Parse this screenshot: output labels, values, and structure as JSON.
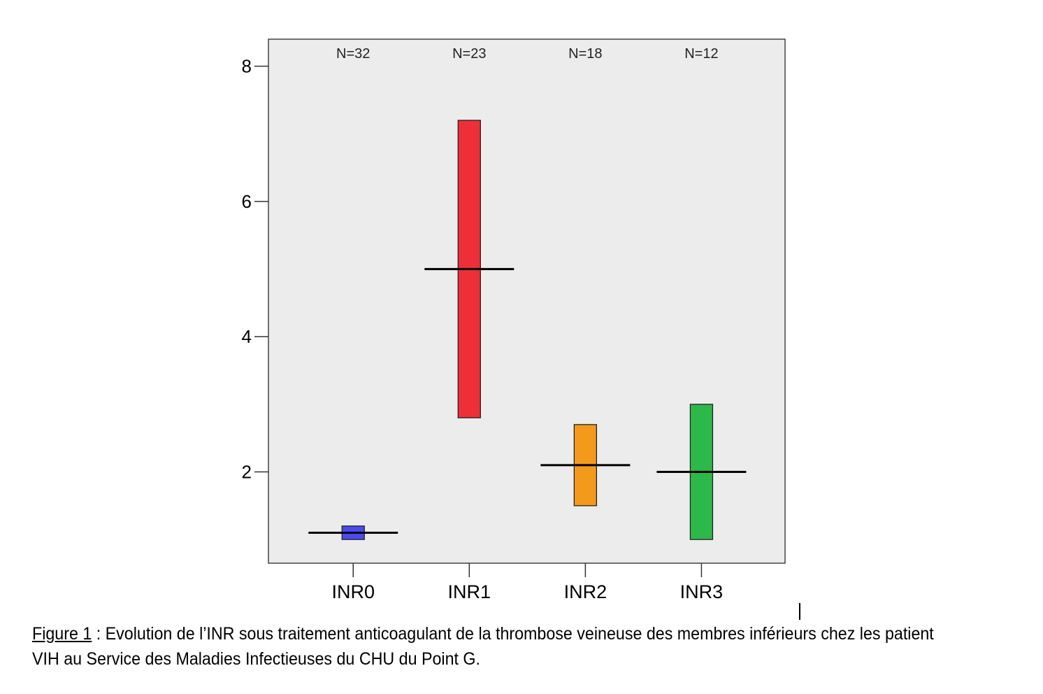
{
  "chart_data": {
    "type": "box",
    "categories": [
      "INR0",
      "INR1",
      "INR2",
      "INR3"
    ],
    "n_labels": [
      "N=32",
      "N=23",
      "N=18",
      "N=12"
    ],
    "boxes": [
      {
        "category": "INR0",
        "low": 1.0,
        "high": 1.2,
        "median": 1.1,
        "color": "#4b4bf0"
      },
      {
        "category": "INR1",
        "low": 2.8,
        "high": 7.2,
        "median": 5.0,
        "color": "#ee2f3a"
      },
      {
        "category": "INR2",
        "low": 1.5,
        "high": 2.7,
        "median": 2.1,
        "color": "#f39a1c"
      },
      {
        "category": "INR3",
        "low": 1.0,
        "high": 3.0,
        "median": 2.0,
        "color": "#2db84a"
      }
    ],
    "yticks": [
      2,
      4,
      6,
      8
    ],
    "ylim": [
      0.65,
      8.4
    ],
    "grid": false,
    "background": "#ececec"
  },
  "caption": {
    "label": "Figure 1",
    "text": " : Evolution de l’INR sous traitement anticoagulant de la thrombose veineuse des membres inférieurs chez les patient",
    "line2": "VIH au Service des Maladies Infectieuses du CHU du Point G."
  }
}
